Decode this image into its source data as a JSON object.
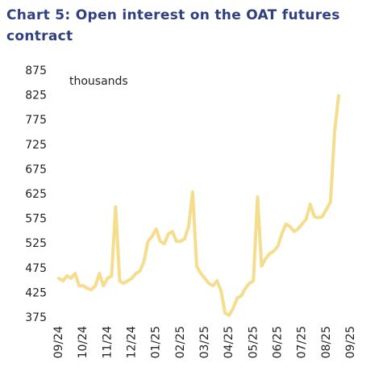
{
  "chart_data": {
    "type": "line",
    "title": "Chart 5: Open interest on the OAT futures contract",
    "annotation": "thousands",
    "categories": [
      "09/24",
      null,
      null,
      null,
      null,
      null,
      "10/24",
      null,
      null,
      null,
      null,
      null,
      "11/24",
      null,
      null,
      null,
      null,
      null,
      "12/24",
      null,
      null,
      null,
      null,
      null,
      "01/25",
      null,
      null,
      null,
      null,
      null,
      "02/25",
      null,
      null,
      null,
      null,
      null,
      "03/25",
      null,
      null,
      null,
      null,
      null,
      "04/25",
      null,
      null,
      null,
      null,
      null,
      "05/25",
      null,
      null,
      null,
      null,
      null,
      "06/25",
      null,
      null,
      null,
      null,
      null,
      "07/25",
      null,
      null,
      null,
      null,
      null,
      "08/25",
      null,
      null,
      null,
      null,
      null,
      "09/25"
    ],
    "values": [
      455,
      450,
      460,
      455,
      465,
      440,
      440,
      435,
      432,
      440,
      465,
      440,
      455,
      460,
      600,
      450,
      445,
      450,
      455,
      465,
      470,
      490,
      530,
      540,
      555,
      530,
      525,
      545,
      550,
      530,
      530,
      535,
      560,
      630,
      480,
      465,
      455,
      445,
      440,
      450,
      430,
      385,
      380,
      395,
      415,
      420,
      435,
      445,
      450,
      620,
      480,
      495,
      505,
      510,
      520,
      545,
      565,
      560,
      550,
      555,
      565,
      575,
      605,
      580,
      578,
      580,
      595,
      610,
      750,
      825,
      null,
      null,
      null
    ],
    "color": "#f5dd8e",
    "ylim": [
      375,
      875
    ],
    "yticks": [
      375,
      425,
      475,
      525,
      575,
      625,
      675,
      725,
      775,
      825,
      875
    ]
  }
}
